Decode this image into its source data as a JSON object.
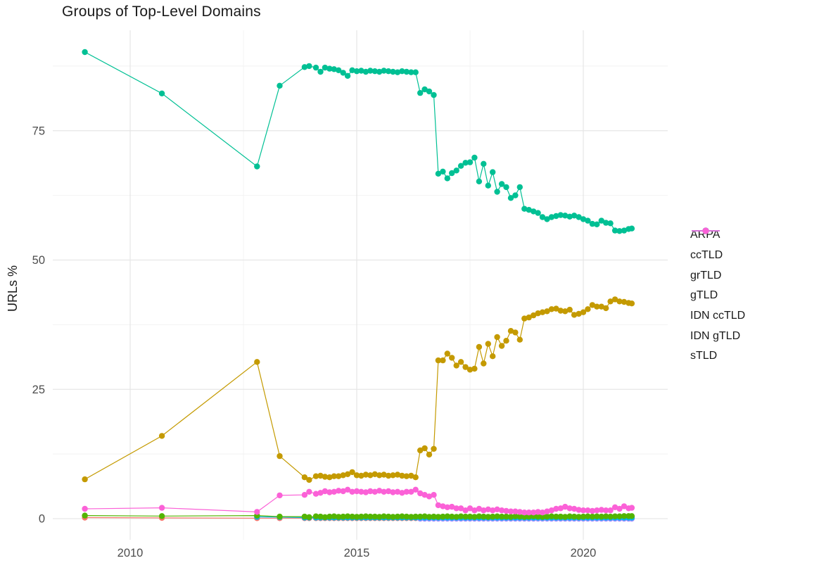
{
  "chart_data": {
    "type": "line",
    "title": "Groups of Top-Level Domains",
    "xlabel": "",
    "ylabel": "URLs %",
    "x_range": [
      2008.3,
      2021.85
    ],
    "y_range": [
      -4,
      94
    ],
    "grid": "on",
    "legend_position": "right",
    "x_ticks": [
      {
        "value": 2010,
        "label": "2010"
      },
      {
        "value": 2015,
        "label": "2015"
      },
      {
        "value": 2020,
        "label": "2020"
      }
    ],
    "y_ticks": [
      {
        "value": 0,
        "label": "0"
      },
      {
        "value": 25,
        "label": "25"
      },
      {
        "value": 50,
        "label": "50"
      },
      {
        "value": 75,
        "label": "75"
      }
    ],
    "x_minor_gridlines": [
      2012.5,
      2017.5
    ],
    "y_minor_gridlines": [
      12.5,
      37.5,
      62.5,
      87.5
    ],
    "major_grid_color": "#e6e6e6",
    "minor_grid_color": "#f2f2f2",
    "tick_label_color": "#4d4d4d",
    "x_dense": [
      2013.85,
      2013.95,
      2014.1,
      2014.2,
      2014.3,
      2014.4,
      2014.5,
      2014.6,
      2014.7,
      2014.8,
      2014.9,
      2015.0,
      2015.1,
      2015.2,
      2015.3,
      2015.4,
      2015.5,
      2015.6,
      2015.7,
      2015.8,
      2015.9,
      2016.0,
      2016.1,
      2016.2,
      2016.3,
      2016.4,
      2016.5,
      2016.6,
      2016.7,
      2016.8,
      2016.9,
      2017.0,
      2017.1,
      2017.2,
      2017.3,
      2017.4,
      2017.5,
      2017.6,
      2017.7,
      2017.8,
      2017.9,
      2018.0,
      2018.1,
      2018.2,
      2018.3,
      2018.4,
      2018.5,
      2018.6,
      2018.7,
      2018.8,
      2018.9,
      2019.0,
      2019.1,
      2019.2,
      2019.3,
      2019.4,
      2019.5,
      2019.6,
      2019.7,
      2019.8,
      2019.9,
      2020.0,
      2020.1,
      2020.2,
      2020.3,
      2020.4,
      2020.5,
      2020.6,
      2020.7,
      2020.8,
      2020.9,
      2021.0,
      2021.07
    ],
    "draw_order": [
      "ARPA",
      "IDN gTLD",
      "IDN ccTLD",
      "grTLD",
      "ccTLD",
      "gTLD",
      "sTLD"
    ],
    "series": [
      {
        "name": "ARPA",
        "color": "#F8766D",
        "x_sparse": [
          2009.0,
          2010.7,
          2012.8,
          2013.3
        ],
        "y_sparse": [
          0.2,
          0.15,
          0.1,
          0.1
        ],
        "dense": true,
        "dense_from": 0,
        "y_dense": 0.1
      },
      {
        "name": "ccTLD",
        "color": "#C49A00",
        "x_sparse": [
          2009.0,
          2010.7,
          2012.8,
          2013.3
        ],
        "y_sparse": [
          7.6,
          16.0,
          30.3,
          12.1
        ],
        "dense": true,
        "dense_from": 0,
        "y_dense": [
          8.0,
          7.5,
          8.2,
          8.3,
          8.1,
          8.0,
          8.2,
          8.2,
          8.4,
          8.6,
          9.0,
          8.4,
          8.3,
          8.5,
          8.4,
          8.6,
          8.4,
          8.5,
          8.3,
          8.4,
          8.5,
          8.3,
          8.2,
          8.3,
          8.0,
          13.2,
          13.6,
          12.4,
          13.5,
          30.6,
          30.6,
          31.9,
          31.1,
          29.6,
          30.3,
          29.3,
          28.8,
          29.0,
          33.2,
          30.0,
          33.8,
          31.4,
          35.1,
          33.4,
          34.4,
          36.3,
          36.0,
          34.6,
          38.7,
          38.9,
          39.3,
          39.7,
          39.9,
          40.1,
          40.5,
          40.6,
          40.2,
          40.1,
          40.4,
          39.4,
          39.6,
          39.9,
          40.5,
          41.3,
          41.0,
          41.0,
          40.7,
          42.0,
          42.4,
          42.0,
          41.9,
          41.7,
          41.6
        ]
      },
      {
        "name": "grTLD",
        "color": "#53B400",
        "x_sparse": [
          2009.0,
          2010.7,
          2012.8,
          2013.3
        ],
        "y_sparse": [
          0.6,
          0.5,
          0.6,
          0.4
        ],
        "dense": true,
        "dense_from": 0,
        "y_dense": [
          0.4,
          0.3,
          0.45,
          0.4,
          0.3,
          0.4,
          0.45,
          0.35,
          0.4,
          0.45,
          0.4,
          0.35,
          0.4,
          0.45,
          0.4,
          0.4,
          0.35,
          0.45,
          0.4,
          0.35,
          0.4,
          0.45,
          0.4,
          0.35,
          0.4,
          0.4,
          0.45,
          0.35,
          0.4,
          0.35,
          0.4,
          0.45,
          0.4,
          0.35,
          0.45,
          0.4,
          0.4,
          0.35,
          0.45,
          0.4,
          0.35,
          0.4,
          0.45,
          0.4,
          0.4,
          0.35,
          0.45,
          0.4,
          0.35,
          0.4,
          0.45,
          0.4,
          0.35,
          0.4,
          0.45,
          0.4,
          0.4,
          0.35,
          0.45,
          0.4,
          0.35,
          0.4,
          0.45,
          0.4,
          0.45,
          0.4,
          0.45,
          0.4,
          0.45,
          0.45,
          0.5,
          0.5,
          0.5
        ]
      },
      {
        "name": "gTLD",
        "color": "#00C094",
        "x_sparse": [
          2009.0,
          2010.7,
          2012.8,
          2013.3
        ],
        "y_sparse": [
          90.2,
          82.2,
          68.1,
          83.7
        ],
        "dense": true,
        "dense_from": 0,
        "y_dense": [
          87.3,
          87.5,
          87.2,
          86.4,
          87.2,
          87.0,
          86.9,
          86.7,
          86.2,
          85.6,
          86.7,
          86.5,
          86.6,
          86.4,
          86.6,
          86.5,
          86.4,
          86.6,
          86.5,
          86.4,
          86.3,
          86.5,
          86.4,
          86.3,
          86.3,
          82.3,
          83.0,
          82.6,
          81.9,
          66.7,
          67.1,
          65.8,
          66.8,
          67.3,
          68.2,
          68.8,
          68.9,
          69.8,
          65.2,
          68.6,
          64.4,
          67.0,
          63.2,
          64.7,
          64.1,
          62.0,
          62.5,
          64.1,
          59.9,
          59.7,
          59.4,
          59.1,
          58.3,
          57.9,
          58.3,
          58.5,
          58.7,
          58.6,
          58.4,
          58.6,
          58.3,
          57.9,
          57.6,
          57.0,
          56.9,
          57.6,
          57.2,
          57.1,
          55.7,
          55.6,
          55.7,
          56.0,
          56.1
        ]
      },
      {
        "name": "IDN ccTLD",
        "color": "#00B6EB",
        "x_sparse": [
          2012.8,
          2013.3
        ],
        "y_sparse": [
          0.35,
          0.3
        ],
        "dense": true,
        "dense_from": 0,
        "y_dense": 0.2
      },
      {
        "name": "IDN gTLD",
        "color": "#A58AFF",
        "x_sparse": [],
        "y_sparse": [],
        "dense": true,
        "dense_from": 25,
        "y_dense": 0.0
      },
      {
        "name": "sTLD",
        "color": "#FB61D7",
        "x_sparse": [
          2009.0,
          2010.7,
          2012.8,
          2013.3
        ],
        "y_sparse": [
          1.9,
          2.1,
          1.3,
          4.5
        ],
        "dense": true,
        "dense_from": 0,
        "y_dense": [
          4.6,
          5.2,
          4.8,
          5.0,
          5.3,
          5.1,
          5.2,
          5.4,
          5.3,
          5.6,
          5.2,
          5.3,
          5.2,
          5.1,
          5.3,
          5.2,
          5.4,
          5.2,
          5.3,
          5.1,
          5.2,
          5.0,
          5.2,
          5.2,
          5.6,
          4.9,
          4.6,
          4.3,
          4.6,
          2.6,
          2.4,
          2.2,
          2.3,
          2.0,
          2.0,
          1.6,
          2.0,
          1.6,
          1.9,
          1.6,
          1.8,
          1.6,
          1.8,
          1.6,
          1.5,
          1.4,
          1.4,
          1.3,
          1.2,
          1.2,
          1.2,
          1.3,
          1.2,
          1.4,
          1.6,
          1.9,
          2.0,
          2.3,
          2.0,
          1.9,
          1.7,
          1.6,
          1.6,
          1.5,
          1.6,
          1.7,
          1.6,
          1.6,
          2.2,
          1.9,
          2.4,
          2.0,
          2.1
        ]
      }
    ]
  }
}
